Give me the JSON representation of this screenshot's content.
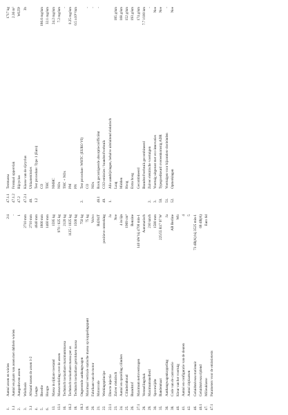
{
  "columns": [
    {
      "items": [
        {
          "num": "1.",
          "label": "Aantal assen en wielen",
          "value": "2/4"
        },
        {
          "num": "1.1",
          "label": "Aantal en plaats van assen met dubbele wielen",
          "value": "-"
        },
        {
          "num": "2.",
          "label": "Aangedreven assen",
          "value": "1"
        },
        {
          "num": "3.",
          "label": "Wielbasis",
          "value": "2710 mm"
        },
        {
          "num": "3.1",
          "label": "Afstand tussen de assen 1-2",
          "value": "2710 mm"
        },
        {
          "num": "4.",
          "label": "Lengte",
          "value": "4640 mm"
        },
        {
          "num": "5.",
          "label": "Breedte",
          "value": "1800 mm"
        },
        {
          "num": "6.",
          "label": "Hoogte",
          "value": "1460 mm"
        },
        {
          "num": "13.",
          "label": "Massa in rijklare toestand",
          "value": "1595 kg"
        },
        {
          "num": "13.1",
          "label": "Massaverdeling over de assen",
          "value": "970 / 625 kg"
        },
        {
          "num": "16.",
          "label": "Technisch toelaatbare maximummassa",
          "value": "2120 kg"
        },
        {
          "num": "16.2",
          "label": "Technisch toelaatbare massa per as",
          "value": "1125 / 1025 kg"
        },
        {
          "num": "18.",
          "label": "Technisch toelaatbare getrokken massa",
          "value": "1500 kg"
        },
        {
          "num": "18.3",
          "label": "Ongeremde aanhangwagen",
          "value": "750 kg"
        },
        {
          "num": "19.",
          "label": "Maximaal verticale statische massa op koppelingspunt",
          "value": "75 kg"
        },
        {
          "num": "20.",
          "label": "Fabrikant van de motor",
          "value": "Volvo"
        },
        {
          "num": "21.",
          "label": "Motorcode",
          "value": "B4204T"
        },
        {
          "num": "22.",
          "label": "Werkingsprincipe",
          "value": "positieve ontsteking"
        },
        {
          "num": "22.1",
          "label": "Directe injectie",
          "value": "Ja"
        },
        {
          "num": "23.",
          "label": "Zuiver elektrisch",
          "value": "Nee"
        },
        {
          "num": "24.",
          "label": "Aantal en opstelling cilinders",
          "value": "4 in lijn"
        },
        {
          "num": "25.",
          "label": "Cilinderinhoud",
          "value": "1969 cm³"
        },
        {
          "num": "26.",
          "label": "Brandstof",
          "value": "Benzine"
        },
        {
          "num": "27.1",
          "label": "Maximum nettovermogen",
          "value": "140 kW bij 4700 min-1"
        },
        {
          "num": "28.",
          "label": "Versnellingsbak",
          "value": "Automatisch"
        },
        {
          "num": "29.",
          "label": "Maximumsnelheid",
          "value": "210 km/h"
        },
        {
          "num": "30.",
          "label": "Spoorwijdte",
          "value": "1580 mm"
        },
        {
          "num": "35.",
          "label": "Bandenmaat",
          "value": "225/55 R17 97 W"
        },
        {
          "num": "36.",
          "label": "Aanhangwagenkoppeling",
          "value": "Ja"
        },
        {
          "num": "38.",
          "label": "Code van de carrosserie",
          "value": "AB Berline"
        },
        {
          "num": "40.",
          "label": "Kleur van het voertuig",
          "value": "Wit"
        },
        {
          "num": "41.",
          "label": "Aantal en configuratie van de deuren",
          "value": "4"
        },
        {
          "num": "42.",
          "label": "Aantal zitplaatsen",
          "value": "5"
        },
        {
          "num": "46.",
          "label": "Geluidsniveau stationair",
          "value": "73 dB(A) bij 3525 min-1"
        },
        {
          "num": "46.1",
          "label": "Geluidsniveau rijdend",
          "value": "68 dB(A)"
        },
        {
          "num": "47.",
          "label": "Milieuklasse",
          "value": "Euro 6d"
        },
        {
          "num": "47.1",
          "label": "Parameters voor de emissietests"
        }
      ]
    },
    {
      "items": [
        {
          "num": "47.1.1",
          "label": "Testmassa",
          "value": "1717 kg"
        },
        {
          "num": "47.1.2",
          "label": "Frontaal oppervlak",
          "value": "2.36 m²"
        },
        {
          "num": "47.2",
          "label": "Rijcyclus",
          "value": "WLTP"
        },
        {
          "num": "47.2.1",
          "label": "Klasse van de rijcyclus",
          "value": "3b"
        },
        {
          "num": "48.",
          "label": "Uitlaatemissies"
        },
        {
          "num": "1.2",
          "label": "Test procedure: Type 1 (Euro)"
        },
        {
          "label": "CO",
          "value": "186.6 mg/km"
        },
        {
          "label": "THC",
          "value": "32.1 mg/km"
        },
        {
          "label": "NMHC",
          "value": "24.2 mg/km"
        },
        {
          "label": "NOx",
          "value": "7.2 mg/km"
        },
        {
          "label": "THC + NOx",
          "value": "-"
        },
        {
          "label": "PM",
          "value": "0.25 mg/km"
        },
        {
          "label": "PN",
          "value": "0.5 x10¹¹/km"
        },
        {
          "num": "2.",
          "label": "Test procedure: WHTC (EURO VI)"
        },
        {
          "label": "CO",
          "value": "-"
        },
        {
          "label": "NOx",
          "value": "-"
        },
        {
          "num": "48.1",
          "label": "Rook gecorrigeerde absorptiecoëfficiënt",
          "value": "-"
        },
        {
          "num": "49.",
          "label": "CO2-emissies / brandstofverbruik"
        },
        {
          "num": "1.",
          "label": "Alle aandrijvingen, behalve uitsluitend elektrisch"
        },
        {
          "label": "Laag",
          "value": "185 g/km"
        },
        {
          "label": "Midden",
          "value": "168 g/km"
        },
        {
          "label": "Hoog",
          "value": "152 g/km"
        },
        {
          "label": "Extra hoog",
          "value": "193 g/km"
        },
        {
          "label": "Gecombineerd",
          "value": "174 g/km"
        },
        {
          "label": "Brandstofverbruik gecombineerd",
          "value": "7.7 l/100 km"
        },
        {
          "num": "2.",
          "label": "Zuiver elektrische voertuigen",
          "value": "-"
        },
        {
          "num": "3.",
          "label": "Voertuig uitgerust met eco-innovaties",
          "value": "Nee"
        },
        {
          "num": "50.",
          "label": "Typegoedkeurd overeenkomstig ADR",
          "value": "Nee"
        },
        {
          "num": "51.",
          "label": "Voertuigen voor bijzondere doeleinden",
          "value": "-"
        },
        {
          "num": "52.",
          "label": "Opmerkingen",
          "value": "Nee"
        }
      ]
    }
  ]
}
